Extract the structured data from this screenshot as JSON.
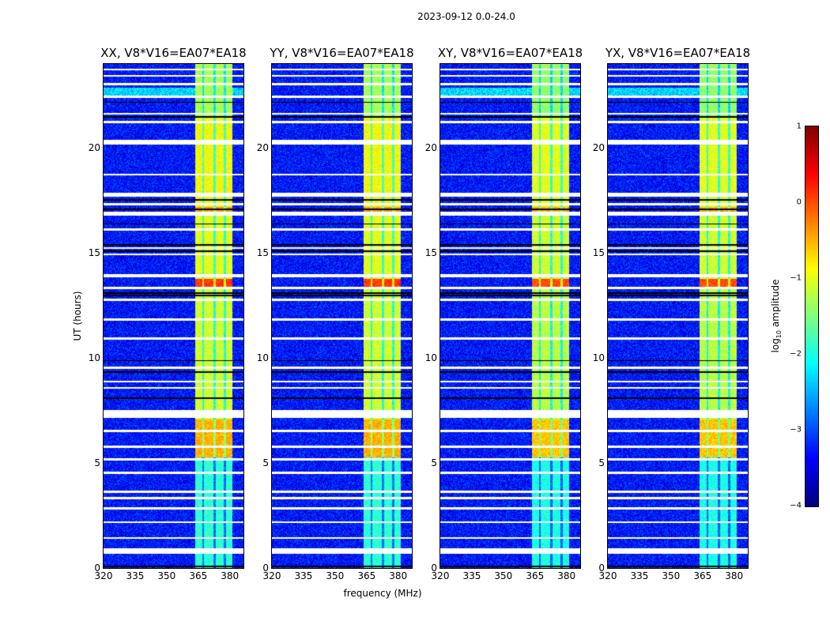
{
  "chart_data": {
    "type": "heatmap",
    "suptitle": "2023-09-12 0.0-24.0",
    "xlabel": "frequency (MHz)",
    "ylabel": "UT (hours)",
    "xlim": [
      320,
      386.5
    ],
    "ylim": [
      0,
      24
    ],
    "xticks": [
      "320",
      "335",
      "350",
      "365",
      "380"
    ],
    "xtick_values": [
      320,
      335,
      350,
      365,
      380
    ],
    "yticks": [
      "0",
      "5",
      "10",
      "15",
      "20"
    ],
    "ytick_values": [
      0,
      5,
      10,
      15,
      20
    ],
    "panels": [
      {
        "title": "XX, V8*V16=EA07*EA18"
      },
      {
        "title": "YY, V8*V16=EA07*EA18"
      },
      {
        "title": "XY, V8*V16=EA07*EA18"
      },
      {
        "title": "YX, V8*V16=EA07*EA18"
      }
    ],
    "colorbar": {
      "label": "log10 amplitude",
      "label_main": "log",
      "label_sub": "10",
      "label_rest": " amplitude",
      "colormap": "jet",
      "range": [
        -4,
        1
      ],
      "ticks": [
        "1",
        "0",
        "−1",
        "−2",
        "−3",
        "−4"
      ],
      "tick_values": [
        1,
        0,
        -1,
        -2,
        -3,
        -4
      ]
    },
    "background_level": -3.3,
    "rfi_band_mhz": [
      363.5,
      381
    ],
    "rfi_band_gaps_mhz": [
      367.2,
      372.5,
      377.6
    ],
    "rfi_levels": [
      {
        "hours": [
          0,
          5.3
        ],
        "level": -1.9
      },
      {
        "hours": [
          5.3,
          7.1
        ],
        "level": -0.5
      },
      {
        "hours": [
          7.1,
          13.3
        ],
        "level": -1.1
      },
      {
        "hours": [
          13.3,
          13.8
        ],
        "level": 0.1
      },
      {
        "hours": [
          13.8,
          16.8
        ],
        "level": -1.0
      },
      {
        "hours": [
          16.8,
          17.2
        ],
        "level": -0.4
      },
      {
        "hours": [
          17.2,
          21.5
        ],
        "level": -0.9
      },
      {
        "hours": [
          21.5,
          24
        ],
        "level": -1.3
      }
    ],
    "flagged_white_hours": [
      [
        0.7,
        0.95
      ],
      [
        1.4,
        1.5
      ],
      [
        2.15,
        2.25
      ],
      [
        2.8,
        2.9
      ],
      [
        3.3,
        3.4
      ],
      [
        3.6,
        3.7
      ],
      [
        4.5,
        4.6
      ],
      [
        5.15,
        5.25
      ],
      [
        5.75,
        5.85
      ],
      [
        6.5,
        6.6
      ],
      [
        7.15,
        7.55
      ],
      [
        8.55,
        8.65
      ],
      [
        8.85,
        8.95
      ],
      [
        9.5,
        9.6
      ],
      [
        10.9,
        11.0
      ],
      [
        11.8,
        11.9
      ],
      [
        12.75,
        12.85
      ],
      [
        13.3,
        13.4
      ],
      [
        13.85,
        14.0
      ],
      [
        14.9,
        15.0
      ],
      [
        15.2,
        15.3
      ],
      [
        16.1,
        16.2
      ],
      [
        16.8,
        17.0
      ],
      [
        17.3,
        17.4
      ],
      [
        17.7,
        17.9
      ],
      [
        18.7,
        18.8
      ],
      [
        20.2,
        20.4
      ],
      [
        21.2,
        21.3
      ],
      [
        21.6,
        21.7
      ],
      [
        22.4,
        22.5
      ],
      [
        23.0,
        23.1
      ],
      [
        23.4,
        23.5
      ],
      [
        23.7,
        23.8
      ]
    ],
    "flagged_black_hours": [
      0.1,
      8.1,
      9.35,
      9.9,
      13.0,
      13.1,
      15.1,
      15.4,
      16.4,
      17.1,
      17.55,
      21.5,
      22.2
    ]
  }
}
